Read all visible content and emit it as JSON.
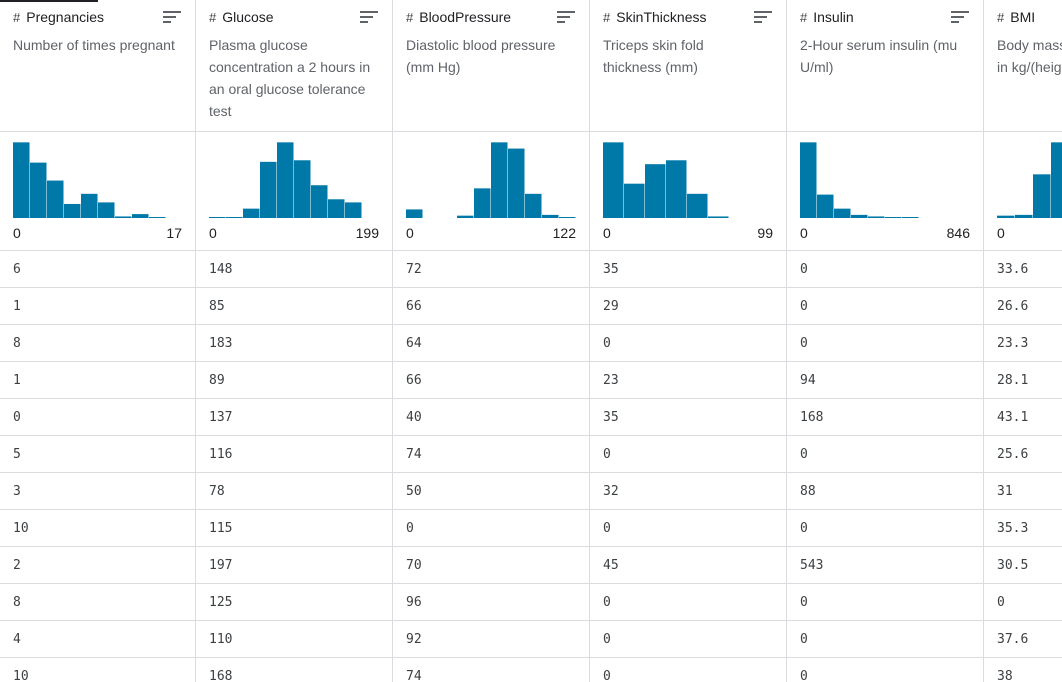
{
  "accent_color": "#0079a8",
  "columns": [
    {
      "name": "Pregnancies",
      "type_icon": "hash-icon",
      "description": "Number of times pregnant",
      "min": "0",
      "max": "17",
      "histogram": [
        0.97,
        0.71,
        0.48,
        0.18,
        0.31,
        0.2,
        0.02,
        0.05,
        0.01,
        0.0
      ],
      "values": [
        "6",
        "1",
        "8",
        "1",
        "0",
        "5",
        "3",
        "10",
        "2",
        "8",
        "4",
        "10"
      ]
    },
    {
      "name": "Glucose",
      "type_icon": "hash-icon",
      "description": "Plasma glucose\nconcentration a 2 hours in\nan oral glucose tolerance\ntest",
      "min": "0",
      "max": "199",
      "histogram": [
        0.01,
        0.01,
        0.12,
        0.72,
        0.97,
        0.74,
        0.42,
        0.24,
        0.2
      ],
      "values": [
        "148",
        "85",
        "183",
        "89",
        "137",
        "116",
        "78",
        "115",
        "197",
        "125",
        "110",
        "168"
      ]
    },
    {
      "name": "BloodPressure",
      "type_icon": "hash-icon",
      "description": "Diastolic blood pressure\n(mm Hg)",
      "min": "0",
      "max": "122",
      "histogram": [
        0.11,
        0.0,
        0.0,
        0.03,
        0.38,
        0.97,
        0.89,
        0.31,
        0.04,
        0.01
      ],
      "values": [
        "72",
        "66",
        "64",
        "66",
        "40",
        "74",
        "50",
        "0",
        "70",
        "96",
        "92",
        "74"
      ]
    },
    {
      "name": "SkinThickness",
      "type_icon": "hash-icon",
      "description": "Triceps skin fold\nthickness (mm)",
      "min": "0",
      "max": "99",
      "histogram": [
        0.97,
        0.44,
        0.69,
        0.74,
        0.31,
        0.02,
        0.0,
        0.0
      ],
      "values": [
        "35",
        "29",
        "0",
        "23",
        "35",
        "0",
        "32",
        "0",
        "45",
        "0",
        "0",
        "0"
      ]
    },
    {
      "name": "Insulin",
      "type_icon": "hash-icon",
      "description": "2-Hour serum insulin (mu\nU/ml)",
      "min": "0",
      "max": "846",
      "histogram": [
        0.97,
        0.3,
        0.12,
        0.04,
        0.02,
        0.01,
        0.01,
        0.0,
        0.0,
        0.0
      ],
      "values": [
        "0",
        "0",
        "0",
        "94",
        "168",
        "0",
        "88",
        "0",
        "543",
        "0",
        "0",
        "0"
      ]
    },
    {
      "name": "BMI",
      "type_icon": "hash-icon",
      "description": "Body mass\nin kg/(heig",
      "min": "0",
      "max": "",
      "histogram": [
        0.03,
        0.04,
        0.56,
        0.97
      ],
      "values": [
        "33.6",
        "26.6",
        "23.3",
        "28.1",
        "43.1",
        "25.6",
        "31",
        "35.3",
        "30.5",
        "0",
        "37.6",
        "38"
      ]
    }
  ]
}
